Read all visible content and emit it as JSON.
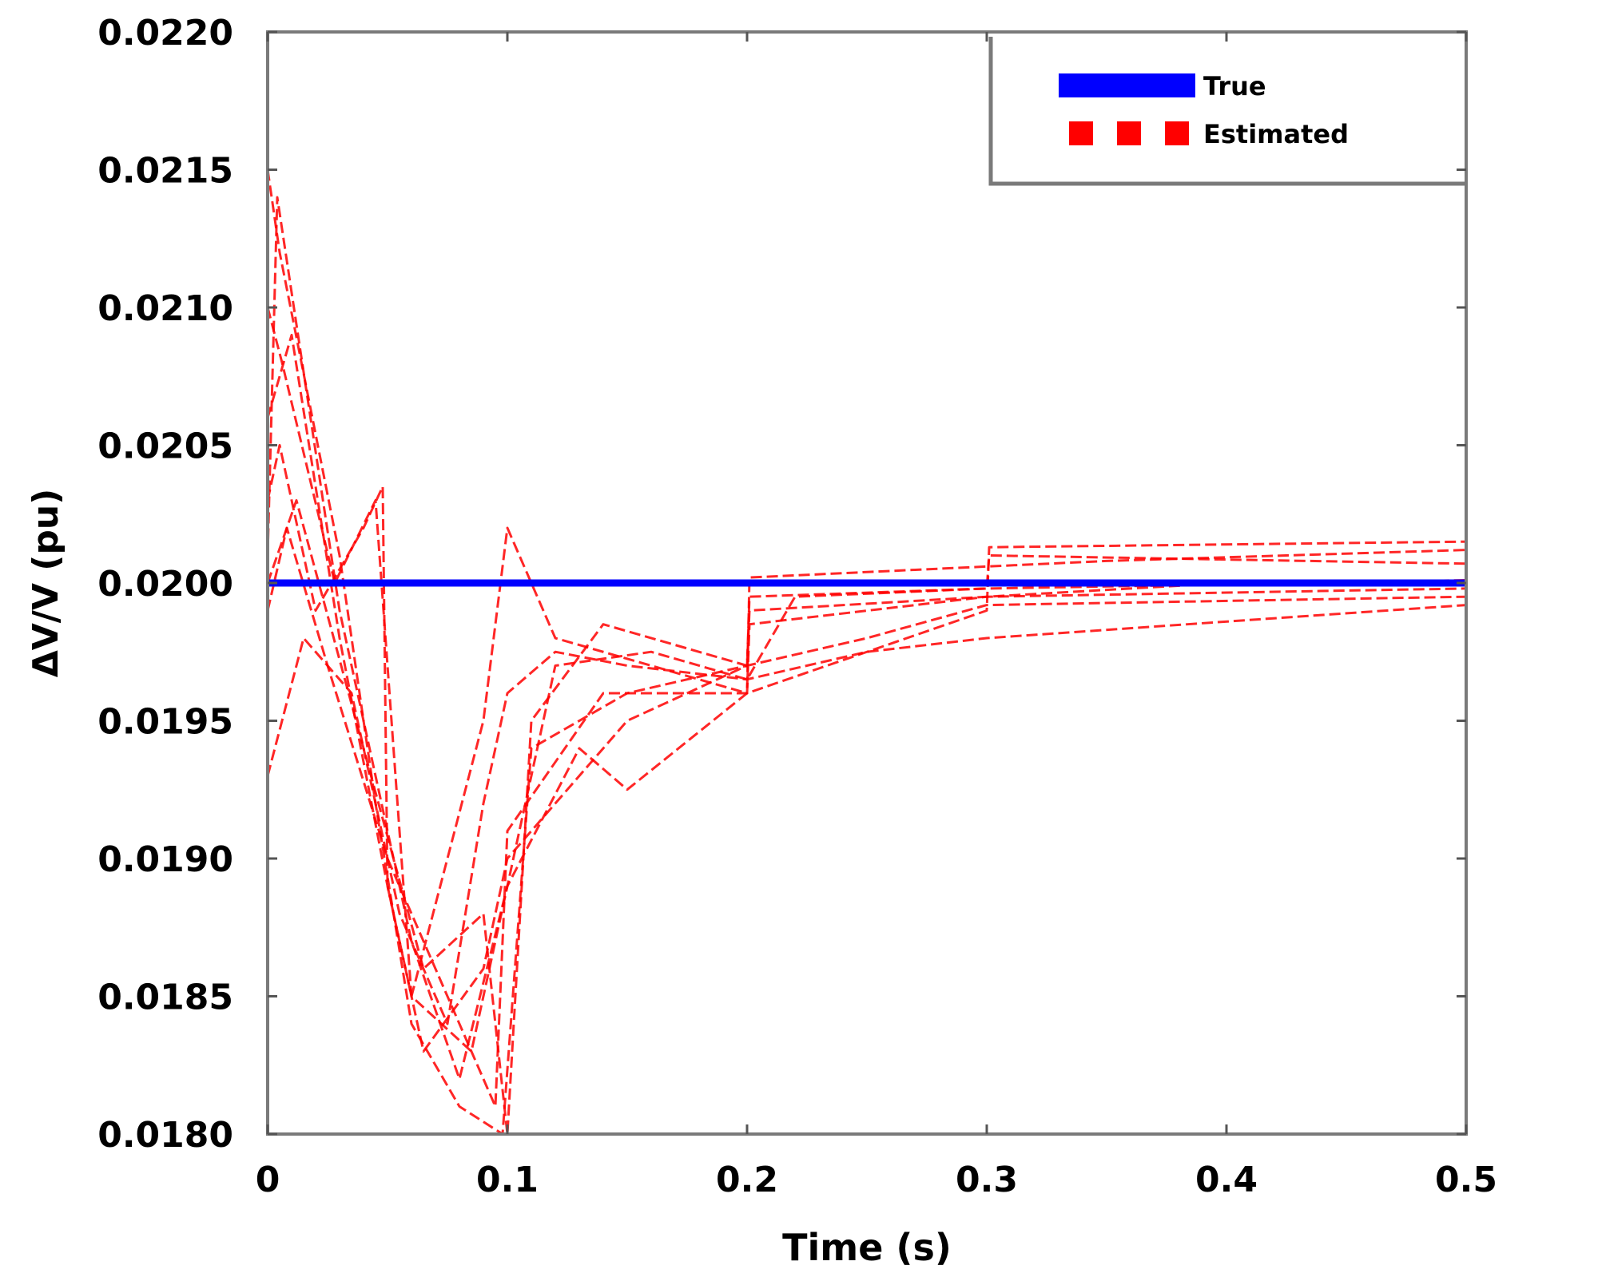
{
  "chart_data": {
    "type": "line",
    "title": "",
    "xlabel": "Time (s)",
    "ylabel": "ΔV/V (pu)",
    "xlim": [
      0,
      0.5
    ],
    "ylim": [
      0.018,
      0.022
    ],
    "x_ticks": [
      0,
      0.1,
      0.2,
      0.3,
      0.4,
      0.5
    ],
    "x_tick_labels": [
      "0",
      "0.1",
      "0.2",
      "0.3",
      "0.4",
      "0.5"
    ],
    "y_ticks": [
      0.018,
      0.0185,
      0.019,
      0.0195,
      0.02,
      0.0205,
      0.021,
      0.0215,
      0.022
    ],
    "y_tick_labels": [
      "0.0180",
      "0.0185",
      "0.0190",
      "0.0195",
      "0.0200",
      "0.0205",
      "0.0210",
      "0.0215",
      "0.0220"
    ],
    "grid": false,
    "legend": {
      "position": "top-right",
      "entries": [
        "True",
        "Estimated"
      ]
    },
    "series": [
      {
        "name": "True",
        "style": "solid",
        "color": "#0000ff",
        "x": [
          0,
          0.5
        ],
        "y": [
          0.02,
          0.02
        ]
      },
      {
        "name": "Estimated",
        "style": "dashed",
        "color": "#ff0000",
        "runs": [
          {
            "x": [
              0,
              0.005,
              0.03,
              0.045,
              0.06,
              0.08,
              0.098,
              0.11,
              0.15,
              0.2,
              0.201,
              0.3,
              0.4,
              0.5
            ],
            "y": [
              0.0215,
              0.0212,
              0.0201,
              0.0192,
              0.0184,
              0.0181,
              0.018,
              0.0194,
              0.0196,
              0.0197,
              0.0199,
              0.01995,
              0.02,
              0.02
            ]
          },
          {
            "x": [
              0,
              0.005,
              0.02,
              0.04,
              0.048,
              0.05,
              0.06,
              0.09,
              0.1,
              0.12,
              0.16,
              0.2,
              0.201,
              0.3,
              0.5
            ],
            "y": [
              0.0203,
              0.0205,
              0.0199,
              0.0202,
              0.02035,
              0.0189,
              0.0185,
              0.0195,
              0.0202,
              0.0198,
              0.0197,
              0.0196,
              0.01985,
              0.01995,
              0.01998
            ]
          },
          {
            "x": [
              0,
              0.01,
              0.03,
              0.05,
              0.065,
              0.09,
              0.1,
              0.15,
              0.2,
              0.25,
              0.3,
              0.5
            ],
            "y": [
              0.0206,
              0.0209,
              0.0198,
              0.0189,
              0.0183,
              0.0186,
              0.019,
              0.0195,
              0.0197,
              0.0198,
              0.01992,
              0.01995
            ]
          },
          {
            "x": [
              0,
              0.008,
              0.025,
              0.05,
              0.07,
              0.095,
              0.1,
              0.14,
              0.2,
              0.3,
              0.301,
              0.5
            ],
            "y": [
              0.0199,
              0.0202,
              0.0197,
              0.019,
              0.0186,
              0.0181,
              0.0191,
              0.0196,
              0.0196,
              0.0199,
              0.02013,
              0.02015
            ]
          },
          {
            "x": [
              0,
              0.004,
              0.03,
              0.06,
              0.08,
              0.1,
              0.13,
              0.15,
              0.2,
              0.201,
              0.35,
              0.5
            ],
            "y": [
              0.0201,
              0.0214,
              0.0199,
              0.0187,
              0.0182,
              0.0189,
              0.0194,
              0.01925,
              0.0196,
              0.02002,
              0.02008,
              0.02012
            ]
          },
          {
            "x": [
              0,
              0.015,
              0.035,
              0.055,
              0.075,
              0.09,
              0.1,
              0.12,
              0.15,
              0.2,
              0.25,
              0.3,
              0.5
            ],
            "y": [
              0.0193,
              0.0198,
              0.0196,
              0.0188,
              0.0184,
              0.0192,
              0.0196,
              0.01975,
              0.0197,
              0.01965,
              0.01975,
              0.0198,
              0.01992
            ]
          },
          {
            "x": [
              0,
              0.006,
              0.028,
              0.045,
              0.06,
              0.085,
              0.1,
              0.12,
              0.16,
              0.2,
              0.22,
              0.3,
              0.5
            ],
            "y": [
              0.021,
              0.0208,
              0.02,
              0.0203,
              0.0185,
              0.0183,
              0.0189,
              0.0197,
              0.01975,
              0.01965,
              0.01995,
              0.01998,
              0.02001
            ]
          },
          {
            "x": [
              0,
              0.012,
              0.04,
              0.065,
              0.09,
              0.1,
              0.11,
              0.14,
              0.2,
              0.201,
              0.3,
              0.301,
              0.5
            ],
            "y": [
              0.02,
              0.0203,
              0.0194,
              0.0186,
              0.0188,
              0.018,
              0.0195,
              0.01985,
              0.0197,
              0.01995,
              0.01998,
              0.0201,
              0.02007
            ]
          }
        ]
      }
    ]
  }
}
